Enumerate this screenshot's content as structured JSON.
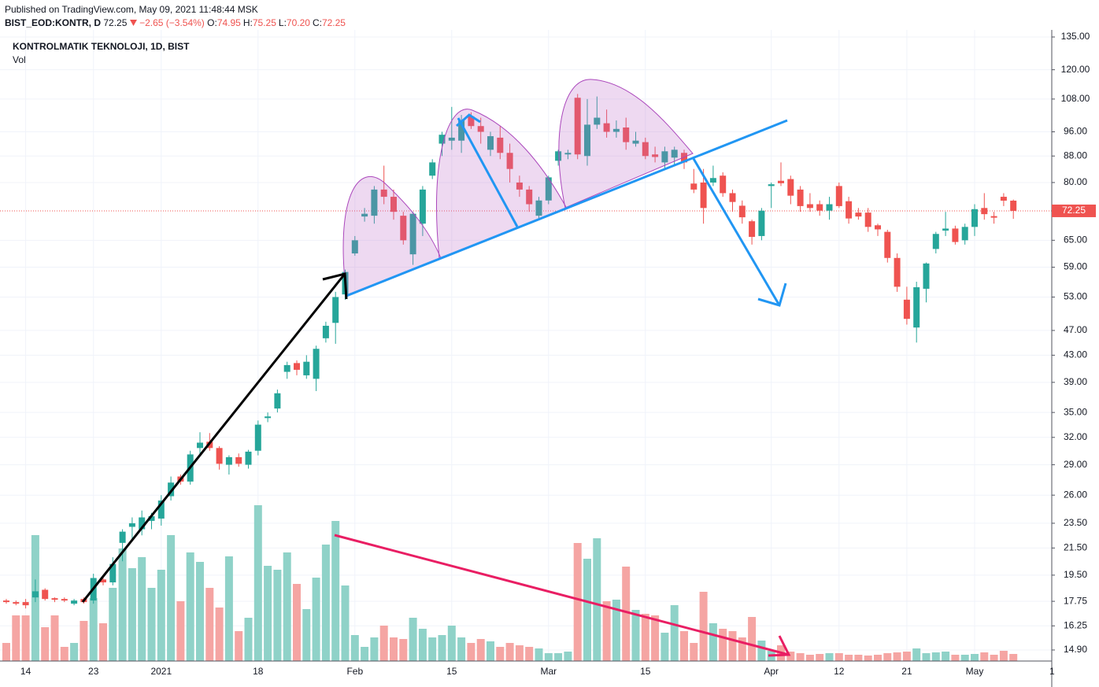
{
  "header": {
    "published": "Published on TradingView.com, May 09, 2021 11:48:44 MSK",
    "symbol": "BIST_EOD:KONTR, D",
    "price": "72.25",
    "change": "−2.65 (−3.54%)",
    "ohlc": [
      {
        "key": "O:",
        "value": "74.95"
      },
      {
        "key": "H:",
        "value": "75.25"
      },
      {
        "key": "L:",
        "value": "70.20"
      },
      {
        "key": "C:",
        "value": "72.25"
      }
    ]
  },
  "chart_data": {
    "type": "candlestick",
    "title": "KONTROLMATIK TEKNOLOJI, 1D, BIST",
    "volume_label": "Vol",
    "log_scale": true,
    "grid": true,
    "up_color": "#26a69a",
    "down_color": "#ef5350",
    "volume_up_color": "#8fd2c8",
    "volume_down_color": "#f5a5a3",
    "categories": [
      null,
      null,
      "14",
      null,
      null,
      null,
      null,
      null,
      null,
      "23",
      null,
      null,
      null,
      null,
      null,
      null,
      "2021",
      null,
      null,
      null,
      null,
      null,
      null,
      null,
      null,
      null,
      "18",
      null,
      null,
      null,
      null,
      null,
      null,
      null,
      null,
      null,
      "Feb",
      null,
      null,
      null,
      null,
      null,
      null,
      null,
      null,
      null,
      "15",
      null,
      null,
      null,
      null,
      null,
      null,
      null,
      null,
      null,
      "Mar",
      null,
      null,
      null,
      null,
      null,
      null,
      null,
      null,
      null,
      "15",
      null,
      null,
      null,
      null,
      null,
      null,
      null,
      null,
      null,
      null,
      null,
      null,
      "Apr",
      null,
      null,
      null,
      null,
      null,
      null,
      "12",
      null,
      null,
      null,
      null,
      null,
      null,
      "21",
      null,
      null,
      null,
      null,
      null,
      null,
      "May",
      null,
      null,
      null,
      null,
      null,
      null,
      null,
      "1"
    ],
    "open": [
      17.8,
      17.7,
      17.7,
      18.0,
      18.5,
      17.95,
      17.9,
      17.6,
      17.9,
      17.8,
      19.2,
      19.0,
      21.9,
      23.2,
      23.0,
      23.7,
      23.9,
      25.9,
      27.8,
      27.3,
      30.8,
      31.5,
      30.8,
      29.0,
      29.8,
      29.0,
      30.5,
      34.3,
      35.5,
      40.5,
      41.8,
      40.0,
      39.5,
      45.7,
      48.3,
      53.5,
      62,
      70.8,
      71,
      78,
      76,
      71,
      61.8,
      69,
      82,
      92,
      93,
      93,
      101.5,
      98,
      90,
      94,
      89,
      80,
      78,
      71,
      75,
      86.5,
      88.5,
      108.5,
      88,
      98.5,
      99,
      96,
      97.5,
      92,
      92.5,
      88.5,
      86,
      87.5,
      89,
      79.7,
      80,
      80,
      82,
      77,
      73.6,
      69.6,
      66,
      79,
      80.5,
      81,
      78,
      74,
      74,
      72.3,
      79,
      74.8,
      71.8,
      71.8,
      68.6,
      67,
      61,
      52.5,
      47.5,
      54.6,
      63,
      67.3,
      67.8,
      65,
      68.2,
      73,
      70.9,
      76,
      74.95,
      null,
      null,
      null,
      null
    ],
    "high": [
      17.9,
      17.8,
      17.9,
      19.2,
      18.6,
      18.0,
      18.0,
      17.9,
      18.0,
      19.6,
      19.4,
      20.8,
      23.0,
      24.0,
      24.6,
      24.4,
      26.0,
      27.8,
      28.0,
      30.5,
      32.6,
      32.5,
      31.0,
      30.0,
      30.2,
      30.6,
      34.0,
      35.0,
      38.0,
      42.0,
      42.2,
      43.0,
      44.5,
      48.5,
      54.0,
      58.5,
      66,
      73,
      79,
      85,
      78,
      72,
      72,
      79,
      87,
      96,
      105,
      102,
      103,
      101,
      96,
      98,
      92,
      82,
      79,
      76,
      82,
      90,
      90,
      110,
      108,
      109,
      104,
      100,
      101,
      96,
      94,
      91,
      91,
      91,
      90,
      84,
      84,
      85,
      83,
      78,
      75,
      70,
      73,
      80,
      86,
      82,
      79,
      77,
      75,
      76,
      80,
      76,
      73,
      73,
      69,
      67.5,
      62,
      55,
      56,
      60,
      67,
      72,
      68.5,
      69,
      74,
      77,
      72,
      77,
      75.25,
      null,
      null,
      null,
      null
    ],
    "low": [
      17.6,
      17.5,
      17.3,
      17.7,
      17.8,
      17.7,
      17.7,
      17.5,
      17.6,
      17.6,
      18.8,
      18.8,
      20.5,
      22.0,
      22.5,
      23.0,
      23.3,
      25.5,
      27.0,
      27.0,
      30.0,
      30.5,
      28.5,
      28.0,
      28.8,
      28.6,
      30.0,
      33.8,
      35.0,
      39.5,
      40.0,
      39.5,
      37.8,
      45.0,
      44.8,
      52.5,
      61.5,
      69.5,
      69,
      74,
      70,
      64,
      59.5,
      66,
      81,
      88,
      90,
      89,
      97,
      92,
      88,
      87,
      80,
      76,
      72,
      70,
      74,
      85,
      87,
      87,
      85,
      97,
      94,
      94,
      90,
      91,
      87,
      86,
      84,
      85,
      84,
      77,
      69,
      79,
      76,
      72,
      69,
      64,
      65,
      73,
      79,
      74,
      72,
      72,
      71,
      70,
      73,
      69,
      70,
      67,
      66,
      60,
      54,
      48,
      45,
      52,
      62,
      66,
      64,
      64,
      66,
      70,
      69,
      73.5,
      70.2,
      null,
      null,
      null,
      null
    ],
    "close": [
      17.7,
      17.6,
      17.5,
      18.4,
      17.9,
      17.85,
      17.8,
      17.8,
      17.7,
      19.3,
      19.0,
      20.3,
      22.8,
      23.5,
      24.0,
      24.1,
      25.5,
      27.2,
      27.3,
      30.1,
      31.4,
      30.8,
      29.1,
      29.8,
      29.1,
      30.4,
      33.5,
      34.5,
      37.5,
      41.5,
      40.8,
      42.0,
      44.0,
      47.8,
      53.0,
      58.0,
      65,
      71.5,
      78,
      76,
      72,
      65,
      71.5,
      78,
      86,
      95,
      94,
      100,
      98,
      96,
      94.5,
      89,
      84,
      78,
      74,
      75,
      81.5,
      89.5,
      89,
      88.5,
      98.5,
      101,
      96,
      97,
      92.5,
      93,
      88,
      87.7,
      89.5,
      90,
      86,
      78,
      73,
      81.3,
      77,
      74.6,
      70.6,
      65.8,
      72.3,
      79.5,
      79.8,
      76.3,
      73.5,
      73,
      72.3,
      74,
      73.5,
      70.3,
      70.8,
      68.2,
      67.6,
      61,
      55,
      49,
      54.9,
      59.8,
      66.5,
      67.8,
      64.6,
      68.2,
      72.7,
      71.4,
      70.5,
      74.95,
      72.25,
      null,
      null,
      null,
      null
    ],
    "volume": [
      23,
      58,
      58,
      160,
      43,
      58,
      18,
      23,
      51,
      80,
      48,
      93,
      143,
      118,
      132,
      93,
      116,
      160,
      76,
      138,
      126,
      93,
      68,
      133,
      38,
      55,
      198,
      121,
      116,
      138,
      98,
      66,
      106,
      148,
      178,
      96,
      33,
      18,
      30,
      45,
      30,
      28,
      55,
      41,
      30,
      33,
      45,
      30,
      23,
      28,
      25,
      18,
      23,
      20,
      18,
      16,
      10,
      10,
      12,
      150,
      130,
      156,
      76,
      78,
      120,
      65,
      60,
      58,
      36,
      71,
      38,
      23,
      88,
      48,
      41,
      38,
      30,
      56,
      26,
      13,
      20,
      12,
      10,
      8,
      9,
      10,
      10,
      8,
      8,
      7,
      8,
      10,
      11,
      12,
      16,
      10,
      11,
      12,
      8,
      8,
      9,
      11,
      8,
      13,
      9,
      null,
      null,
      null,
      null
    ],
    "vlim": [
      0,
      800
    ],
    "ylim": [
      14.32,
      137.7
    ],
    "yticks": [
      {
        "value": 14.9,
        "label": "14.90"
      },
      {
        "value": 16.25,
        "label": "16.25"
      },
      {
        "value": 17.75,
        "label": "17.75"
      },
      {
        "value": 19.5,
        "label": "19.50"
      },
      {
        "value": 21.5,
        "label": "21.50"
      },
      {
        "value": 23.5,
        "label": "23.50"
      },
      {
        "value": 26,
        "label": "26.00"
      },
      {
        "value": 29,
        "label": "29.00"
      },
      {
        "value": 32,
        "label": "32.00"
      },
      {
        "value": 35,
        "label": "35.00"
      },
      {
        "value": 39,
        "label": "39.00"
      },
      {
        "value": 43,
        "label": "43.00"
      },
      {
        "value": 47,
        "label": "47.00"
      },
      {
        "value": 53,
        "label": "53.00"
      },
      {
        "value": 59,
        "label": "59.00"
      },
      {
        "value": 65,
        "label": "65.00"
      },
      {
        "value": 80,
        "label": "80.00"
      },
      {
        "value": 88,
        "label": "88.00"
      },
      {
        "value": 96,
        "label": "96.00"
      },
      {
        "value": 108,
        "label": "108.00"
      },
      {
        "value": 120,
        "label": "120.00"
      },
      {
        "value": 135,
        "label": "135.00"
      }
    ]
  }
}
